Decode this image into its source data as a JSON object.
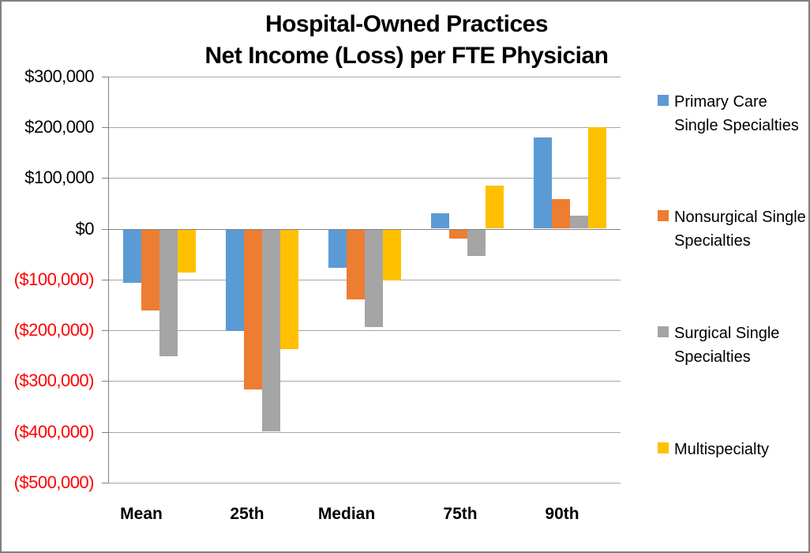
{
  "chart_data": {
    "type": "bar",
    "title": "Hospital-Owned Practices Net Income (Loss) per FTE Physician",
    "title_line1": "Hospital-Owned Practices",
    "title_line2": "Net Income (Loss) per FTE Physician",
    "categories": [
      "Mean",
      "25th",
      "Median",
      "75th",
      "90th"
    ],
    "series": [
      {
        "name": "Primary Care Single Specialties",
        "color": "#5B9BD5",
        "pattern": "solid",
        "values": [
          -105000,
          -200000,
          -75000,
          30000,
          180000
        ]
      },
      {
        "name": "Nonsurgical Single Specialties",
        "color": "#ED7D31",
        "pattern": "solid",
        "values": [
          -160000,
          -315000,
          -138000,
          -18000,
          58000
        ]
      },
      {
        "name": "Surgical Single Specialties",
        "color": "#A5A5A5",
        "pattern": "dotted",
        "values": [
          -250000,
          -397000,
          -192000,
          -52000,
          25000
        ]
      },
      {
        "name": "Multispecialty",
        "color": "#FFC000",
        "pattern": "solid",
        "values": [
          -85000,
          -235000,
          -100000,
          85000,
          200000
        ]
      }
    ],
    "xlabel": "",
    "ylabel": "",
    "ylim": [
      -500000,
      300000
    ],
    "grid": true,
    "legend_position": "right",
    "y_ticks": [
      {
        "value": 300000,
        "label": "$300,000",
        "color": "#000000"
      },
      {
        "value": 200000,
        "label": "$200,000",
        "color": "#000000"
      },
      {
        "value": 100000,
        "label": "$100,000",
        "color": "#000000"
      },
      {
        "value": 0,
        "label": "$0",
        "color": "#000000"
      },
      {
        "value": -100000,
        "label": "($100,000)",
        "color": "#FF0000"
      },
      {
        "value": -200000,
        "label": "($200,000)",
        "color": "#FF0000"
      },
      {
        "value": -300000,
        "label": "($300,000)",
        "color": "#FF0000"
      },
      {
        "value": -400000,
        "label": "($400,000)",
        "color": "#FF0000"
      },
      {
        "value": -500000,
        "label": "($500,000)",
        "color": "#FF0000"
      }
    ]
  },
  "styles": {
    "background": "#FFFFFF",
    "border_color": "#7F7F7F",
    "gridline_color": "#A6A6A6",
    "axis_color": "#808080",
    "negative_label_color": "#FF0000",
    "title_color": "#000000"
  }
}
